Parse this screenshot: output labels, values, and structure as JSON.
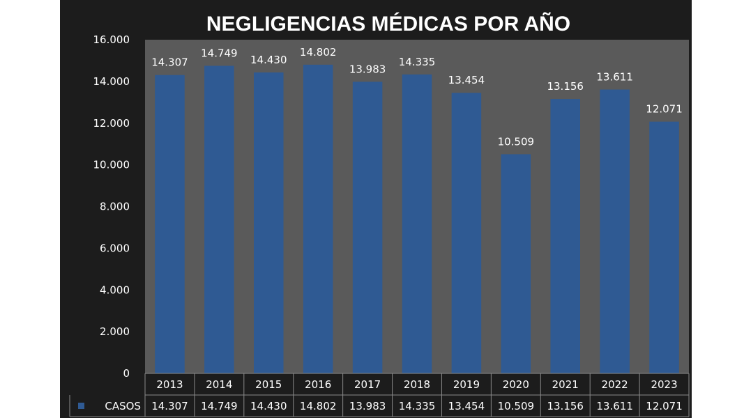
{
  "chart_data": {
    "type": "bar",
    "title": "NEGLIGENCIAS MÉDICAS POR AÑO",
    "categories": [
      "2013",
      "2014",
      "2015",
      "2016",
      "2017",
      "2018",
      "2019",
      "2020",
      "2021",
      "2022",
      "2023"
    ],
    "series": [
      {
        "name": "CASOS",
        "values": [
          14307,
          14749,
          14430,
          14802,
          13983,
          14335,
          13454,
          10509,
          13156,
          13611,
          12071
        ],
        "labels": [
          "14.307",
          "14.749",
          "14.430",
          "14.802",
          "13.983",
          "14.335",
          "13.454",
          "10.509",
          "13.156",
          "13.611",
          "12.071"
        ]
      }
    ],
    "ylim": [
      0,
      16000
    ],
    "yticks": [
      0,
      2000,
      4000,
      6000,
      8000,
      10000,
      12000,
      14000,
      16000
    ],
    "ytick_labels": [
      "0",
      "2.000",
      "4.000",
      "6.000",
      "8.000",
      "10.000",
      "12.000",
      "14.000",
      "16.000"
    ],
    "grid": false,
    "data_table": true,
    "colors": {
      "bar": "#2f5a93",
      "plot_area": "#5a5a5a",
      "background": "#1c1c1c",
      "text": "#ffffff",
      "table_border": "#8a8a8a"
    }
  }
}
